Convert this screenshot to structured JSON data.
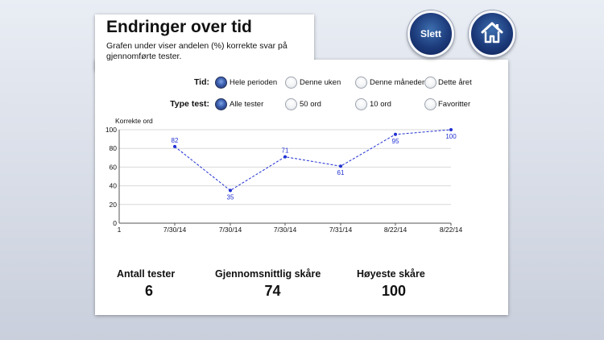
{
  "header": {
    "title": "Endringer over tid",
    "subtitle": "Grafen under viser andelen (%) korrekte svar på gjennomførte tester."
  },
  "buttons": {
    "delete_label": "Slett"
  },
  "filters": {
    "time_label": "Tid:",
    "time_options": [
      "Hele perioden",
      "Denne uken",
      "Denne måneden",
      "Dette året"
    ],
    "time_selected": 0,
    "type_label": "Type test:",
    "type_options": [
      "Alle tester",
      "50 ord",
      "10 ord",
      "Favoritter"
    ],
    "type_selected": 0
  },
  "chart_data": {
    "type": "line",
    "ylabel": "Korrekte ord",
    "ylim": [
      0,
      100
    ],
    "yticks": [
      0,
      20,
      40,
      60,
      80,
      100
    ],
    "x_start_label": "1",
    "categories": [
      "7/30/14",
      "7/30/14",
      "7/30/14",
      "7/31/14",
      "8/22/14",
      "8/22/14"
    ],
    "values": [
      82,
      35,
      71,
      61,
      95,
      100
    ],
    "line_color": "#1f2fd1",
    "grid": true
  },
  "stats": {
    "tests_label": "Antall tester",
    "tests_value": "6",
    "avg_label": "Gjennomsnittlig skåre",
    "avg_value": "74",
    "max_label": "Høyeste skåre",
    "max_value": "100"
  },
  "icons": {
    "home": "home-icon"
  }
}
